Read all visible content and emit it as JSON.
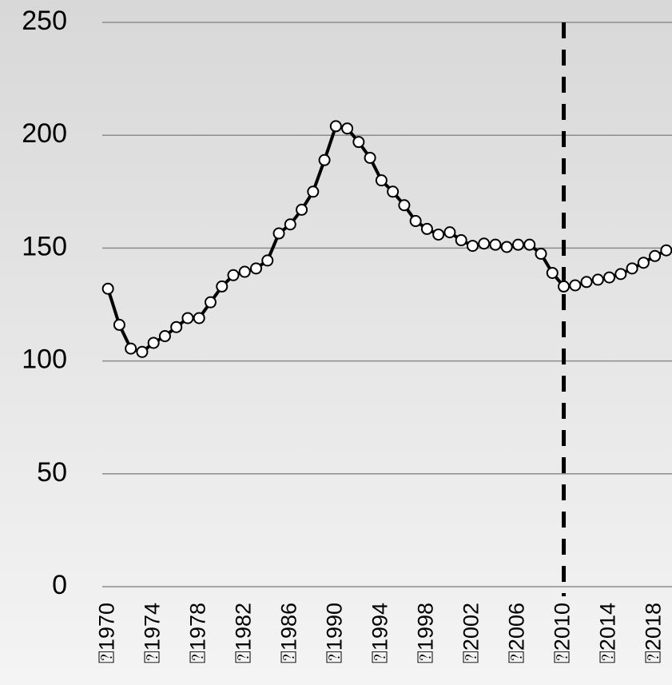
{
  "chart_data": {
    "type": "line",
    "x": [
      1970,
      1971,
      1972,
      1973,
      1974,
      1975,
      1976,
      1977,
      1978,
      1979,
      1980,
      1981,
      1982,
      1983,
      1984,
      1985,
      1986,
      1987,
      1988,
      1989,
      1990,
      1991,
      1992,
      1993,
      1994,
      1995,
      1996,
      1997,
      1998,
      1999,
      2000,
      2001,
      2002,
      2003,
      2004,
      2005,
      2006,
      2007,
      2008,
      2009,
      2010,
      2011,
      2012,
      2013,
      2014,
      2015,
      2016,
      2017,
      2018,
      2019
    ],
    "series": [
      {
        "color": "#000000",
        "values": [
          132,
          116,
          105.5,
          104,
          108,
          111,
          115,
          119,
          119,
          126,
          133,
          138,
          139.5,
          141,
          144.5,
          156.5,
          160.5,
          167,
          175,
          189,
          204,
          203,
          197,
          190,
          180,
          175,
          169,
          162,
          158.5,
          156,
          157,
          153.5,
          151,
          152,
          151.5,
          150.5,
          151.5,
          151.5,
          147.5,
          139,
          133,
          133.5,
          135,
          136,
          137,
          138.5,
          141,
          143.5,
          146.5,
          149
        ]
      }
    ],
    "xlim": [
      1969.5,
      2019.5
    ],
    "ylim": [
      0,
      250
    ],
    "yticks": [
      0,
      50,
      100,
      150,
      200,
      250
    ],
    "xticks": [
      {
        "value": 1970,
        "label": "⍰1970"
      },
      {
        "value": 1974,
        "label": "⍰1974"
      },
      {
        "value": 1978,
        "label": "⍰1978"
      },
      {
        "value": 1982,
        "label": "⍰1982"
      },
      {
        "value": 1986,
        "label": "⍰1986"
      },
      {
        "value": 1990,
        "label": "⍰1990"
      },
      {
        "value": 1994,
        "label": "⍰1994"
      },
      {
        "value": 1998,
        "label": "⍰1998"
      },
      {
        "value": 2002,
        "label": "⍰2002"
      },
      {
        "value": 2006,
        "label": "⍰2006"
      },
      {
        "value": 2010,
        "label": "⍰2010"
      },
      {
        "value": 2014,
        "label": "⍰2014"
      },
      {
        "value": 2018,
        "label": "⍰2018"
      }
    ],
    "vline": 2010,
    "grid": true
  }
}
